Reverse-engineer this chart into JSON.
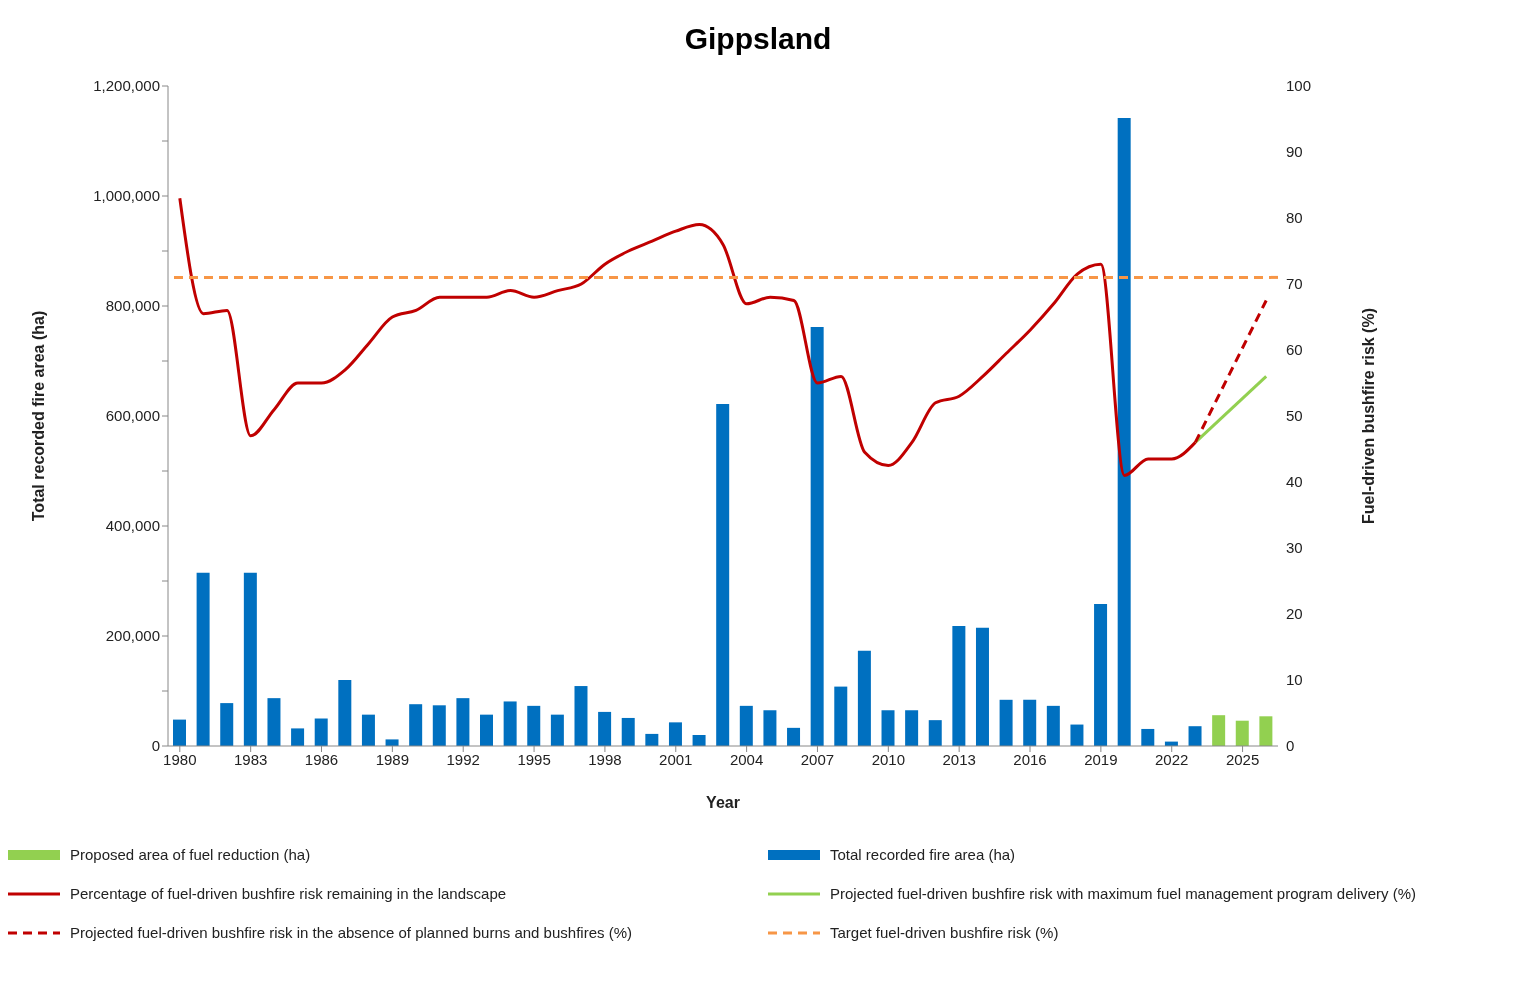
{
  "chart_data": {
    "type": "bar",
    "title": "Gippsland",
    "xlabel": "Year",
    "ylabel": "Total recorded fire area (ha)",
    "y2label": "Fuel-driven bushfire risk (%)",
    "xlim": [
      1979.5,
      2026.5
    ],
    "xticks": [
      1980,
      1983,
      1986,
      1989,
      1992,
      1995,
      1998,
      2001,
      2004,
      2007,
      2010,
      2013,
      2016,
      2019,
      2022,
      2025
    ],
    "ylim": [
      0,
      1200000
    ],
    "yticks": [
      {
        "value": 0,
        "label": "0"
      },
      {
        "value": 100000,
        "label": null
      },
      {
        "value": 200000,
        "label": "200,000"
      },
      {
        "value": 300000,
        "label": null
      },
      {
        "value": 400000,
        "label": "400,000"
      },
      {
        "value": 500000,
        "label": null
      },
      {
        "value": 600000,
        "label": "600,000"
      },
      {
        "value": 700000,
        "label": null
      },
      {
        "value": 800000,
        "label": "800,000"
      },
      {
        "value": 900000,
        "label": null
      },
      {
        "value": 1000000,
        "label": "1,000,000"
      },
      {
        "value": 1100000,
        "label": null
      },
      {
        "value": 1200000,
        "label": "1,200,000"
      }
    ],
    "y2lim": [
      0,
      100
    ],
    "y2ticks": [
      0,
      10,
      20,
      30,
      40,
      50,
      60,
      70,
      80,
      90,
      100
    ],
    "grid": false,
    "legend": "bottom",
    "series": [
      {
        "name": "Proposed area of fuel reduction (ha)",
        "color": "#92d050",
        "x": [
          2024,
          2025,
          2026
        ],
        "values": [
          56000,
          46000,
          54000
        ]
      },
      {
        "name": "Total recorded fire area (ha)",
        "color": "#0070c0",
        "x": [
          1980,
          1981,
          1982,
          1983,
          1984,
          1985,
          1986,
          1987,
          1988,
          1989,
          1990,
          1991,
          1992,
          1993,
          1994,
          1995,
          1996,
          1997,
          1998,
          1999,
          2000,
          2001,
          2002,
          2003,
          2004,
          2005,
          2006,
          2007,
          2008,
          2009,
          2010,
          2011,
          2012,
          2013,
          2014,
          2015,
          2016,
          2017,
          2018,
          2019,
          2020,
          2021,
          2022,
          2023
        ],
        "values": [
          48000,
          315000,
          78000,
          315000,
          87000,
          32000,
          50000,
          120000,
          57000,
          12000,
          76000,
          74000,
          87000,
          57000,
          81000,
          73000,
          57000,
          109000,
          62000,
          51000,
          22000,
          43000,
          20000,
          622000,
          73000,
          65000,
          33000,
          762000,
          108000,
          173000,
          65000,
          65000,
          47000,
          218000,
          215000,
          84000,
          84000,
          73000,
          39000,
          258000,
          1142000,
          31000,
          8000,
          36000
        ]
      },
      {
        "name": "Percentage of fuel-driven bushfire risk remaining in the landscape",
        "type": "line",
        "axis": "y2",
        "color": "#c00000",
        "line_style": "solid",
        "x": [
          1980,
          1981,
          1982,
          1983,
          1984,
          1985,
          1986,
          1987,
          1988,
          1989,
          1990,
          1991,
          1992,
          1993,
          1994,
          1995,
          1996,
          1997,
          1998,
          1999,
          2000,
          2001,
          2002,
          2003,
          2004,
          2005,
          2006,
          2007,
          2008,
          2009,
          2010,
          2011,
          2012,
          2013,
          2014,
          2015,
          2016,
          2017,
          2018,
          2019,
          2020,
          2021,
          2022,
          2023
        ],
        "values": [
          83,
          65.5,
          66,
          47,
          51,
          55,
          55,
          57,
          61,
          65,
          66,
          68,
          68,
          68,
          69,
          68,
          69,
          70,
          73,
          75,
          76.5,
          78,
          79,
          76,
          67,
          68,
          67.5,
          55,
          56,
          44.5,
          42.5,
          46,
          52,
          53,
          56,
          59.5,
          63,
          67,
          71.5,
          73,
          41,
          43.5,
          43.5,
          46
        ]
      },
      {
        "name": "Projected fuel-driven bushfire risk with maximum fuel management program delivery  (%)",
        "type": "line",
        "axis": "y2",
        "color": "#92d050",
        "line_style": "solid",
        "x": [
          2023,
          2026
        ],
        "values": [
          46,
          56
        ]
      },
      {
        "name": "Projected fuel-driven bushfire risk in the absence of planned burns and bushfires (%)",
        "type": "line",
        "axis": "y2",
        "color": "#c00000",
        "line_style": "dashed",
        "x": [
          2023,
          2026
        ],
        "values": [
          46,
          67.5
        ]
      }
    ],
    "ref_lines": [
      {
        "axis": "y2",
        "value": 71,
        "label": "Target fuel-driven bushfire risk (%)",
        "color": "#f79646",
        "line_style": "dashed"
      }
    ]
  }
}
